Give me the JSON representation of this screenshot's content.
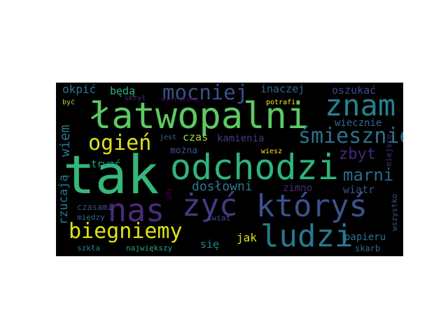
{
  "words": {
    "latwopalni": {
      "text": "łatwopalni",
      "color": "#5ec962"
    },
    "tak": {
      "text": "tak",
      "color": "#35b779"
    },
    "odchodzi": {
      "text": "odchodzi",
      "color": "#2fb47c"
    },
    "nas": {
      "text": "nas",
      "color": "#472c7a"
    },
    "zyc": {
      "text": "żyć",
      "color": "#443a83"
    },
    "ktorys": {
      "text": "któryś",
      "color": "#3b528b"
    },
    "znam": {
      "text": "znam",
      "color": "#26828e"
    },
    "mocniej": {
      "text": "mocniej",
      "color": "#3b528b"
    },
    "ogien": {
      "text": "ogień",
      "color": "#dde318"
    },
    "smiesznie": {
      "text": "śmiesznie",
      "color": "#2c718e"
    },
    "biegniemy": {
      "text": "biegniemy",
      "color": "#dde318"
    },
    "ludzi": {
      "text": "ludzi",
      "color": "#2a788e"
    },
    "marni": {
      "text": "marni",
      "color": "#31688e"
    },
    "zbyt": {
      "text": "zbyt",
      "color": "#482878"
    },
    "okpic": {
      "text": "okpić",
      "color": "#2a788e"
    },
    "beda": {
      "text": "będą",
      "color": "#2fb47c"
    },
    "inaczej": {
      "text": "inaczej",
      "color": "#31688e"
    },
    "oszukac": {
      "text": "oszukać",
      "color": "#3e4a89"
    },
    "wiecznie": {
      "text": "wiecznie",
      "color": "#31688e"
    },
    "wiem": {
      "text": "wiem",
      "color": "#2a788e"
    },
    "czas": {
      "text": "czas",
      "color": "#a0da39"
    },
    "kamienia": {
      "text": "kamienia",
      "color": "#443a83"
    },
    "mozna": {
      "text": "można",
      "color": "#3b528b"
    },
    "trwac": {
      "text": "trwać",
      "color": "#22a884"
    },
    "doslowni": {
      "text": "dosłowni",
      "color": "#2a788e"
    },
    "zimno": {
      "text": "zimno",
      "color": "#472c7a"
    },
    "wiatr": {
      "text": "wiatr",
      "color": "#3b528b"
    },
    "rzucaja": {
      "text": "rzucają",
      "color": "#2a788e"
    },
    "jak": {
      "text": "jak",
      "color": "#dde318"
    },
    "sie": {
      "text": "się",
      "color": "#26828e"
    },
    "papieru": {
      "text": "papieru",
      "color": "#2c718e"
    },
    "skarb": {
      "text": "skarb",
      "color": "#31688e"
    },
    "wszystko": {
      "text": "wszystko",
      "color": "#3b528b"
    },
    "miejsce": {
      "text": "miejsce",
      "color": "#472c7a"
    },
    "czasami": {
      "text": "czasami",
      "color": "#3e4a89"
    },
    "miedzy": {
      "text": "między",
      "color": "#31688e"
    },
    "szkla": {
      "text": "szkła",
      "color": "#26828e"
    },
    "najwiekszy": {
      "text": "największy",
      "color": "#22a884"
    },
    "swiat": {
      "text": "świat",
      "color": "#3b528b"
    },
    "gdy": {
      "text": "gdy",
      "color": "#440154"
    },
    "potrafi": {
      "text": "potrafi",
      "color": "#fde725"
    },
    "wiesz": {
      "text": "wiesz",
      "color": "#fde725"
    },
    "jest": {
      "text": "jest",
      "color": "#31688e"
    },
    "ukryl": {
      "text": "ukrył",
      "color": "#472c7a"
    },
    "wierszami": {
      "text": "wierszami",
      "color": "#440154"
    },
    "byc": {
      "text": "być",
      "color": "#a0da39"
    }
  }
}
